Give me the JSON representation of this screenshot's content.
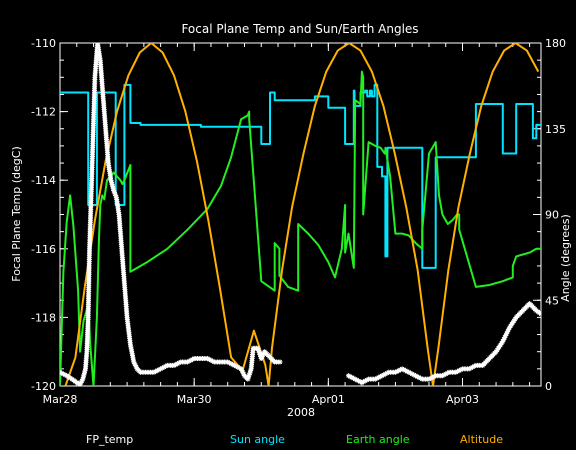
{
  "chart_data": {
    "type": "line",
    "title": "Focal Plane Temp and Sun/Earth Angles",
    "xlabel": "2008",
    "ylabel": "Focal Plane Temp (degC)",
    "y2label": "Angle (degrees)",
    "xlim": [
      0,
      7.17
    ],
    "ylim": [
      -120,
      -110
    ],
    "y2lim": [
      0,
      180
    ],
    "x_ticks": [
      {
        "x": 0,
        "label": "Mar28"
      },
      {
        "x": 2,
        "label": "Mar30"
      },
      {
        "x": 4,
        "label": "Apr01"
      },
      {
        "x": 6,
        "label": "Apr03"
      }
    ],
    "y_ticks": [
      -110,
      -112,
      -114,
      -116,
      -118,
      -120
    ],
    "y2_ticks": [
      180,
      135,
      90,
      45,
      0
    ],
    "legend_position": "bottom",
    "colors": {
      "background": "#000000",
      "axes": "#ffffff",
      "fp_temp": "#ffffff",
      "sun_angle": "#00e5ff",
      "earth_angle": "#22ee22",
      "altitude": "#ffb000"
    },
    "series": [
      {
        "name": "FP_temp",
        "axis": "left",
        "style": "points",
        "x": [
          0.0,
          0.1,
          0.18,
          0.25,
          0.3,
          0.34,
          0.38,
          0.4,
          0.42,
          0.44,
          0.48,
          0.52,
          0.56,
          0.6,
          0.64,
          0.68,
          0.72,
          0.76,
          0.8,
          0.84,
          0.88,
          0.92,
          0.96,
          1.0,
          1.05,
          1.1,
          1.15,
          1.2,
          1.3,
          1.4,
          1.5,
          1.6,
          1.7,
          1.8,
          1.9,
          2.0,
          2.1,
          2.2,
          2.3,
          2.4,
          2.5,
          2.6,
          2.7,
          2.75,
          2.8,
          2.85,
          2.88,
          2.95,
          3.0,
          3.05,
          3.1,
          3.2,
          3.28
        ],
        "y": [
          -119.6,
          -119.7,
          -119.8,
          -119.9,
          -119.95,
          -119.8,
          -119.5,
          -119.0,
          -118.0,
          -116.0,
          -113.5,
          -111.0,
          -110.0,
          -110.5,
          -111.5,
          -112.5,
          -113.5,
          -114.0,
          -114.3,
          -114.5,
          -115.0,
          -116.0,
          -117.0,
          -118.0,
          -118.8,
          -119.3,
          -119.5,
          -119.6,
          -119.6,
          -119.6,
          -119.5,
          -119.4,
          -119.4,
          -119.3,
          -119.3,
          -119.2,
          -119.2,
          -119.2,
          -119.3,
          -119.3,
          -119.3,
          -119.4,
          -119.5,
          -119.7,
          -119.8,
          -119.5,
          -118.9,
          -118.9,
          -119.2,
          -119.0,
          -119.1,
          -119.3,
          -119.3
        ]
      },
      {
        "name": "FP_temp",
        "axis": "left",
        "style": "points",
        "x": [
          4.3,
          4.4,
          4.5,
          4.6,
          4.7,
          4.8,
          4.9,
          5.0,
          5.1,
          5.2,
          5.3,
          5.4,
          5.5,
          5.6,
          5.7,
          5.8,
          5.9,
          6.0,
          6.1,
          6.2,
          6.3,
          6.4,
          6.5,
          6.6,
          6.7,
          6.8,
          6.9,
          7.0,
          7.1,
          7.17
        ],
        "y": [
          -119.7,
          -119.8,
          -119.9,
          -119.8,
          -119.8,
          -119.7,
          -119.6,
          -119.6,
          -119.5,
          -119.6,
          -119.7,
          -119.8,
          -119.8,
          -119.7,
          -119.7,
          -119.6,
          -119.6,
          -119.5,
          -119.5,
          -119.4,
          -119.4,
          -119.2,
          -119.0,
          -118.7,
          -118.3,
          -118.0,
          -117.8,
          -117.6,
          -117.8,
          -117.9
        ]
      },
      {
        "name": "Sun angle",
        "axis": "right",
        "style": "line",
        "x": [
          0.0,
          0.42,
          0.42,
          0.55,
          0.55,
          0.83,
          0.83,
          0.96,
          0.96,
          1.05,
          1.05,
          1.2,
          1.2,
          2.1,
          2.1,
          3.0,
          3.0,
          3.13,
          3.13,
          3.2,
          3.2,
          3.8,
          3.8,
          4.0,
          4.0,
          4.25,
          4.25,
          4.38,
          4.38,
          4.39,
          4.39,
          4.48,
          4.48,
          4.55,
          4.55,
          4.58,
          4.58,
          4.62,
          4.62,
          4.65,
          4.65,
          4.69,
          4.69,
          4.73,
          4.73,
          4.8,
          4.8,
          4.85,
          4.85,
          4.88,
          4.88,
          5.4,
          5.4,
          5.6,
          5.6,
          6.2,
          6.2,
          6.6,
          6.6,
          6.8,
          6.8,
          7.05,
          7.05,
          7.1,
          7.1,
          7.17
        ],
        "y": [
          154,
          154,
          95,
          95,
          154,
          154,
          95,
          95,
          158,
          158,
          138,
          138,
          137,
          137,
          136,
          136,
          127,
          127,
          154,
          154,
          150,
          150,
          152,
          152,
          146,
          146,
          127,
          127,
          155,
          155,
          147,
          147,
          154,
          154,
          155,
          155,
          152,
          152,
          155,
          155,
          152,
          152,
          158,
          158,
          115,
          115,
          110,
          110,
          68,
          68,
          125,
          125,
          62,
          62,
          120,
          120,
          148,
          148,
          122,
          122,
          148,
          148,
          130,
          130,
          137,
          137
        ]
      },
      {
        "name": "Earth angle",
        "axis": "right",
        "style": "line",
        "x": [
          0.0,
          0.05,
          0.1,
          0.15,
          0.2,
          0.27,
          0.3,
          0.35,
          0.4,
          0.42,
          0.45,
          0.5,
          0.55,
          0.58,
          0.6,
          0.63,
          0.66,
          0.7,
          0.75,
          0.8,
          0.85,
          0.9,
          0.93,
          0.96,
          1.05,
          1.05,
          1.3,
          1.6,
          1.9,
          2.2,
          2.4,
          2.55,
          2.7,
          2.8,
          2.82,
          2.82,
          3.0,
          3.2,
          3.2,
          3.27,
          3.27,
          3.4,
          3.55,
          3.55,
          3.7,
          3.85,
          4.0,
          4.1,
          4.2,
          4.25,
          4.25,
          4.3,
          4.38,
          4.4,
          4.48,
          4.5,
          4.52,
          4.52,
          4.6,
          4.7,
          4.78,
          4.8,
          4.84,
          4.85,
          4.85,
          4.92,
          5.0,
          5.1,
          5.2,
          5.3,
          5.4,
          5.4,
          5.5,
          5.6,
          5.65,
          5.7,
          5.78,
          5.85,
          5.92,
          5.95,
          5.95,
          6.2,
          6.4,
          6.6,
          6.75,
          6.75,
          6.8,
          7.0,
          7.0,
          7.1,
          7.17
        ],
        "y": [
          0,
          60,
          86,
          100,
          84,
          50,
          18,
          34,
          40,
          44,
          22,
          0,
          36,
          76,
          95,
          100,
          98,
          108,
          110,
          112,
          110,
          108,
          106,
          108,
          116,
          60,
          65,
          72,
          82,
          93,
          105,
          120,
          140,
          142,
          144,
          140,
          55,
          50,
          75,
          72,
          58,
          52,
          50,
          85,
          80,
          74,
          65,
          57,
          72,
          95,
          70,
          80,
          62,
          150,
          148,
          165,
          162,
          90,
          128,
          126,
          125,
          124,
          122,
          124,
          125,
          110,
          80,
          80,
          79,
          75,
          72,
          82,
          122,
          128,
          100,
          90,
          85,
          87,
          90,
          90,
          82,
          52,
          53,
          55,
          57,
          63,
          68,
          70,
          70,
          72,
          72
        ]
      },
      {
        "name": "Altitude",
        "axis": "right",
        "style": "line",
        "x": [
          0.08,
          0.23,
          0.37,
          0.52,
          0.68,
          0.85,
          1.02,
          1.19,
          1.36,
          1.53,
          1.7,
          1.87,
          2.04,
          2.21,
          2.38,
          2.55,
          2.72,
          2.89,
          3.06,
          3.11,
          3.16,
          3.31,
          3.46,
          3.63,
          3.8,
          3.97,
          4.14,
          4.31,
          4.48,
          4.65,
          4.82,
          4.99,
          5.16,
          5.33,
          5.48,
          5.56,
          5.64,
          5.79,
          5.94,
          6.11,
          6.28,
          6.45,
          6.62,
          6.79,
          6.96,
          7.13
        ],
        "y": [
          0,
          15,
          52,
          87,
          118,
          144,
          163,
          175,
          180,
          175,
          163,
          144,
          118,
          87,
          52,
          15,
          8,
          29,
          11,
          0,
          20,
          61,
          94,
          122,
          147,
          165,
          176,
          180,
          176,
          165,
          147,
          122,
          94,
          61,
          20,
          0,
          20,
          61,
          94,
          122,
          147,
          165,
          176,
          180,
          176,
          165
        ]
      }
    ]
  },
  "legend": [
    {
      "label": "FP_temp",
      "color": "#ffffff"
    },
    {
      "label": "Sun angle",
      "color": "#00e5ff"
    },
    {
      "label": "Earth angle",
      "color": "#22ee22"
    },
    {
      "label": "Altitude",
      "color": "#ffb000"
    }
  ]
}
